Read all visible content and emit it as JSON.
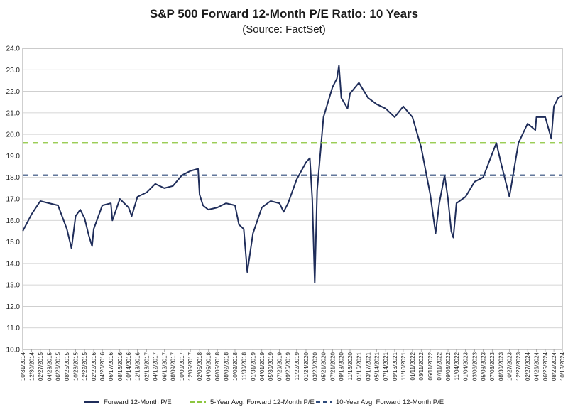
{
  "chart_data": {
    "type": "line",
    "title": "S&P 500 Forward 12-Month P/E Ratio: 10 Years",
    "subtitle": "(Source: FactSet)",
    "ylim": [
      10.0,
      24.0
    ],
    "y_ticks": [
      "10.0",
      "11.0",
      "12.0",
      "13.0",
      "14.0",
      "15.0",
      "16.0",
      "17.0",
      "18.0",
      "19.0",
      "20.0",
      "21.0",
      "22.0",
      "23.0",
      "24.0"
    ],
    "x_ticks": [
      "10/31/2014",
      "12/30/2014",
      "02/27/2015",
      "04/28/2015",
      "06/26/2015",
      "08/25/2015",
      "10/23/2015",
      "12/22/2015",
      "02/22/2016",
      "04/20/2016",
      "06/17/2016",
      "08/16/2016",
      "10/14/2016",
      "12/13/2016",
      "02/13/2017",
      "04/12/2017",
      "06/12/2017",
      "08/09/2017",
      "10/09/2017",
      "12/05/2017",
      "02/05/2018",
      "04/05/2018",
      "06/05/2018",
      "08/02/2018",
      "10/02/2018",
      "11/30/2018",
      "01/31/2019",
      "04/01/2019",
      "05/30/2019",
      "07/29/2019",
      "09/25/2019",
      "11/22/2019",
      "01/24/2020",
      "03/23/2020",
      "05/21/2020",
      "07/21/2020",
      "09/18/2020",
      "11/16/2020",
      "01/15/2021",
      "03/17/2021",
      "05/14/2021",
      "07/14/2021",
      "09/13/2021",
      "11/10/2021",
      "01/11/2022",
      "03/11/2022",
      "05/11/2022",
      "07/11/2022",
      "09/08/2022",
      "11/04/2022",
      "01/04/2023",
      "03/06/2023",
      "05/03/2023",
      "07/03/2023",
      "08/30/2023",
      "10/27/2023",
      "12/27/2023",
      "02/27/2024",
      "04/26/2024",
      "06/25/2024",
      "08/22/2024",
      "10/18/2024"
    ],
    "series": [
      {
        "name": "Forward 12-Month P/E",
        "color": "#1f2d5a",
        "style": "solid",
        "x": [
          "10/31/2014",
          "12/31/2014",
          "02/27/2015",
          "04/28/2015",
          "06/26/2015",
          "08/25/2015",
          "09/25/2015",
          "10/23/2015",
          "11/23/2015",
          "12/22/2015",
          "01/20/2016",
          "02/11/2016",
          "02/22/2016",
          "04/20/2016",
          "06/17/2016",
          "06/27/2016",
          "08/16/2016",
          "10/14/2016",
          "11/04/2016",
          "12/13/2016",
          "02/13/2017",
          "04/12/2017",
          "06/12/2017",
          "08/09/2017",
          "10/09/2017",
          "12/05/2017",
          "01/26/2018",
          "02/05/2018",
          "02/28/2018",
          "04/05/2018",
          "06/05/2018",
          "08/02/2018",
          "10/02/2018",
          "10/29/2018",
          "11/30/2018",
          "12/24/2018",
          "01/31/2019",
          "04/01/2019",
          "05/30/2019",
          "07/29/2019",
          "08/26/2019",
          "09/25/2019",
          "11/22/2019",
          "01/24/2020",
          "02/19/2020",
          "03/06/2020",
          "03/23/2020",
          "04/08/2020",
          "05/21/2020",
          "07/21/2020",
          "08/20/2020",
          "09/02/2020",
          "09/18/2020",
          "10/30/2020",
          "11/16/2020",
          "01/15/2021",
          "03/17/2021",
          "05/14/2021",
          "07/14/2021",
          "09/13/2021",
          "11/10/2021",
          "01/11/2022",
          "03/11/2022",
          "05/11/2022",
          "06/16/2022",
          "07/11/2022",
          "08/16/2022",
          "09/08/2022",
          "09/30/2022",
          "10/14/2022",
          "11/04/2022",
          "01/04/2023",
          "03/06/2023",
          "05/03/2023",
          "07/03/2023",
          "07/31/2023",
          "08/30/2023",
          "10/27/2023",
          "12/27/2023",
          "02/27/2024",
          "04/19/2024",
          "04/26/2024",
          "06/25/2024",
          "08/05/2024",
          "08/22/2024",
          "09/20/2024",
          "10/18/2024"
        ],
        "values": [
          15.5,
          16.3,
          16.9,
          16.8,
          16.7,
          15.6,
          14.7,
          16.2,
          16.5,
          16.1,
          15.3,
          14.8,
          15.6,
          16.7,
          16.8,
          16.0,
          17.0,
          16.6,
          16.2,
          17.1,
          17.3,
          17.7,
          17.5,
          17.6,
          18.1,
          18.3,
          18.4,
          17.2,
          16.7,
          16.5,
          16.6,
          16.8,
          16.7,
          15.8,
          15.6,
          13.6,
          15.4,
          16.6,
          16.9,
          16.8,
          16.4,
          16.8,
          17.9,
          18.7,
          18.9,
          17.0,
          13.1,
          17.4,
          20.8,
          22.2,
          22.6,
          23.2,
          21.7,
          21.2,
          21.9,
          22.4,
          21.7,
          21.4,
          21.2,
          20.8,
          21.3,
          20.8,
          19.4,
          17.2,
          15.4,
          16.8,
          18.1,
          17.0,
          15.5,
          15.2,
          16.8,
          17.1,
          17.8,
          18.0,
          19.1,
          19.6,
          18.7,
          17.1,
          19.6,
          20.5,
          20.2,
          20.8,
          20.8,
          19.8,
          21.3,
          21.7,
          21.8
        ]
      },
      {
        "name": "5-Year Avg. Forward 12-Month P/E",
        "color": "#8dc63f",
        "style": "dashed",
        "constant": 19.6
      },
      {
        "name": "10-Year Avg. Forward 12-Month P/E",
        "color": "#2e4a7a",
        "style": "dashed",
        "constant": 18.1
      }
    ],
    "grid": "horizontal"
  }
}
